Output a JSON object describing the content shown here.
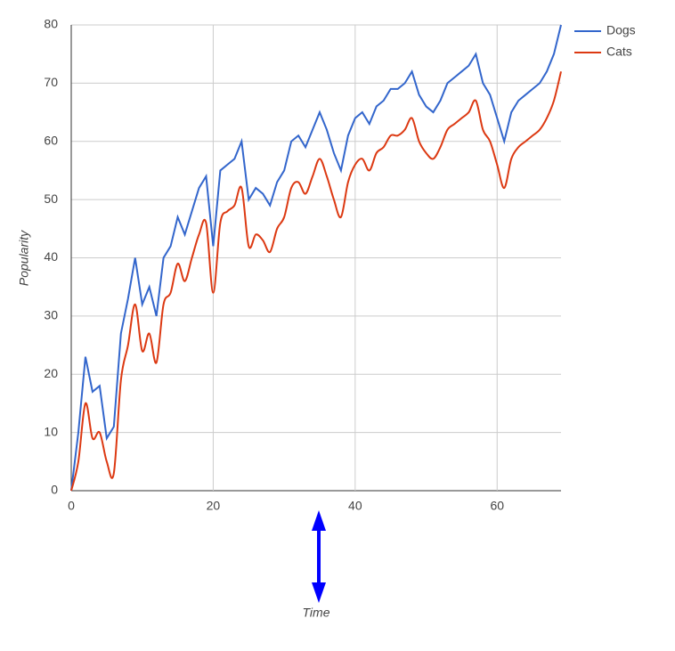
{
  "chart_data": {
    "type": "line",
    "x_label": "Time",
    "y_label": "Popularity",
    "x": [
      0,
      1,
      2,
      3,
      4,
      5,
      6,
      7,
      8,
      9,
      10,
      11,
      12,
      13,
      14,
      15,
      16,
      17,
      18,
      19,
      20,
      21,
      22,
      23,
      24,
      25,
      26,
      27,
      28,
      29,
      30,
      31,
      32,
      33,
      34,
      35,
      36,
      37,
      38,
      39,
      40,
      41,
      42,
      43,
      44,
      45,
      46,
      47,
      48,
      49,
      50,
      51,
      52,
      53,
      54,
      55,
      56,
      57,
      58,
      59,
      60,
      61,
      62,
      63,
      64,
      65,
      66,
      67,
      68,
      69
    ],
    "series": [
      {
        "name": "Dogs",
        "color": "#3366cc",
        "smooth": false,
        "values": [
          0,
          10,
          23,
          17,
          18,
          9,
          11,
          27,
          33,
          40,
          32,
          35,
          30,
          40,
          42,
          47,
          44,
          48,
          52,
          54,
          42,
          55,
          56,
          57,
          60,
          50,
          52,
          51,
          49,
          53,
          55,
          60,
          61,
          59,
          62,
          65,
          62,
          58,
          55,
          61,
          64,
          65,
          63,
          66,
          67,
          69,
          69,
          70,
          72,
          68,
          66,
          65,
          67,
          70,
          71,
          72,
          73,
          75,
          70,
          68,
          64,
          60,
          65,
          67,
          68,
          69,
          70,
          72,
          75,
          80
        ]
      },
      {
        "name": "Cats",
        "color": "#dc3912",
        "smooth": true,
        "values": [
          0,
          5,
          15,
          9,
          10,
          5,
          3,
          19,
          25,
          32,
          24,
          27,
          22,
          32,
          34,
          39,
          36,
          40,
          44,
          46,
          34,
          46,
          48,
          49,
          52,
          42,
          44,
          43,
          41,
          45,
          47,
          52,
          53,
          51,
          54,
          57,
          54,
          50,
          47,
          53,
          56,
          57,
          55,
          58,
          59,
          61,
          61,
          62,
          64,
          60,
          58,
          57,
          59,
          62,
          63,
          64,
          65,
          67,
          62,
          60,
          56,
          52,
          57,
          59,
          60,
          61,
          62,
          64,
          67,
          72
        ]
      }
    ],
    "xlim": [
      0,
      69
    ],
    "xticks": [
      0,
      20,
      40,
      60
    ],
    "ylim": [
      0,
      80
    ],
    "yticks": [
      0,
      10,
      20,
      30,
      40,
      50,
      60,
      70,
      80
    ],
    "grid": true,
    "legend": "right"
  }
}
